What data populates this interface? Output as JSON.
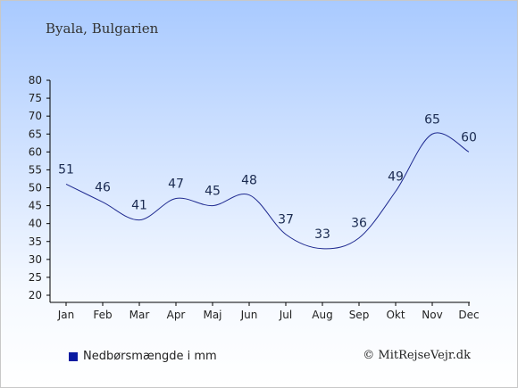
{
  "location_title": "Byala, Bulgarien",
  "legend": {
    "label": "Nedbørsmængde i mm",
    "color": "#0a1aa0"
  },
  "copyright": "© MitRejseVejr.dk",
  "colors": {
    "line": "#1f2a90",
    "label": "#1a2a50",
    "axis": "#000000"
  },
  "chart_data": {
    "type": "line",
    "title": "",
    "xlabel": "",
    "ylabel": "",
    "categories": [
      "Jan",
      "Feb",
      "Mar",
      "Apr",
      "Maj",
      "Jun",
      "Jul",
      "Aug",
      "Sep",
      "Okt",
      "Nov",
      "Dec"
    ],
    "series": [
      {
        "name": "Nedbørsmængde i mm",
        "values": [
          51,
          46,
          41,
          47,
          45,
          48,
          37,
          33,
          36,
          49,
          65,
          60
        ]
      }
    ],
    "ylim": [
      20,
      80
    ],
    "yticks": [
      20,
      25,
      30,
      35,
      40,
      45,
      50,
      55,
      60,
      65,
      70,
      75,
      80
    ],
    "data_labels": true,
    "grid": false,
    "legend_position": "bottom-left"
  }
}
